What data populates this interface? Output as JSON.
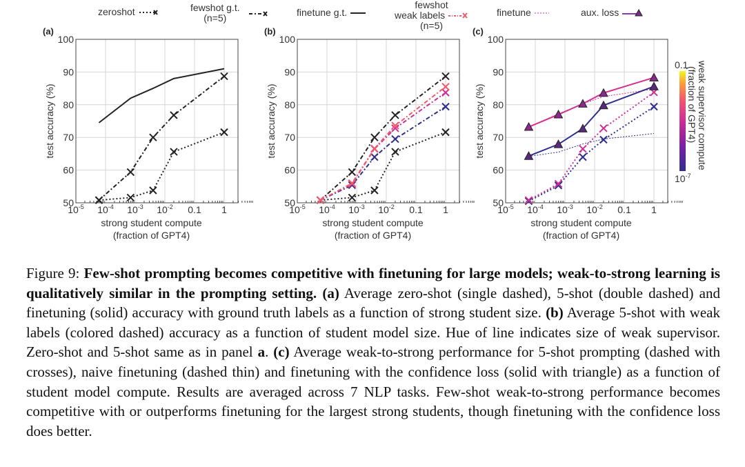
{
  "legend": {
    "zeroshot": "zeroshot",
    "fewshot_gt": [
      "fewshot g.t.",
      "(n=5)"
    ],
    "finetune_gt": "finetune g.t.",
    "fewshot_weak": [
      "fewshot",
      "weak labels",
      "(n=5)"
    ],
    "finetune": "finetune",
    "aux_loss": "aux. loss"
  },
  "colors": {
    "ground_truth": "#222222",
    "weak_large": "#f25a6a",
    "weak_medium": "#cc2f98",
    "weak_small": "#2e2f8c",
    "colorbar_top": "#f0f921",
    "colorbar_bottom": "#2e2f8c"
  },
  "colorbar": {
    "label": [
      "weak supervisor compute",
      "(fraction of GPT4)"
    ],
    "top_label": "0.1",
    "bottom_label": "10",
    "bottom_sup": "-7",
    "colormap": "plasma"
  },
  "chart_data": [
    {
      "panel": "(a)",
      "type": "line",
      "xlabel": [
        "strong student compute",
        "(fraction of GPT4)"
      ],
      "ylabel": "test accuracy (%)",
      "xscale": "log",
      "xlim": [
        1e-05,
        3
      ],
      "ylim": [
        50,
        100
      ],
      "grid": true,
      "xticks": [
        {
          "value": 1e-05,
          "label": "10",
          "sup": "-5"
        },
        {
          "value": 0.0001,
          "label": "10",
          "sup": "-4"
        },
        {
          "value": 0.001,
          "label": "10",
          "sup": "-3"
        },
        {
          "value": 0.01,
          "label": "10",
          "sup": "-2"
        },
        {
          "value": 0.1,
          "label": "0.1"
        },
        {
          "value": 1,
          "label": "1"
        }
      ],
      "yticks": [
        50,
        60,
        70,
        80,
        90,
        100
      ],
      "x": [
        6e-05,
        0.0007,
        0.004,
        0.02,
        1
      ],
      "series": [
        {
          "name": "finetune g.t.",
          "style": "solid",
          "color": "#222222",
          "marker": "none",
          "values": [
            74.5,
            82,
            85,
            88,
            91
          ]
        },
        {
          "name": "fewshot g.t. (n=5)",
          "style": "dashdot",
          "color": "#222222",
          "marker": "x",
          "values": [
            50.8,
            59.4,
            70,
            76.8,
            88.7
          ]
        },
        {
          "name": "zeroshot",
          "style": "dotted",
          "color": "#222222",
          "marker": "x",
          "values": [
            50.8,
            51.6,
            53.8,
            65.6,
            71.6
          ]
        }
      ]
    },
    {
      "panel": "(b)",
      "type": "line",
      "xlabel": [
        "strong student compute",
        "(fraction of GPT4)"
      ],
      "ylabel": "test accuracy (%)",
      "xscale": "log",
      "xlim": [
        1e-05,
        3
      ],
      "ylim": [
        50,
        100
      ],
      "grid": true,
      "xticks": [
        {
          "value": 1e-05,
          "label": "10",
          "sup": "-5"
        },
        {
          "value": 0.0001,
          "label": "10",
          "sup": "-4"
        },
        {
          "value": 0.001,
          "label": "10",
          "sup": "-3"
        },
        {
          "value": 0.01,
          "label": "10",
          "sup": "-2"
        },
        {
          "value": 0.1,
          "label": "0.1"
        },
        {
          "value": 1,
          "label": "1"
        }
      ],
      "yticks": [
        50,
        60,
        70,
        80,
        90,
        100
      ],
      "x": [
        6e-05,
        0.0007,
        0.004,
        0.02,
        1
      ],
      "series": [
        {
          "name": "fewshot g.t. (n=5)",
          "style": "dashdot",
          "color": "#222222",
          "marker": "x",
          "values": [
            50.8,
            59.4,
            70,
            76.8,
            88.7
          ]
        },
        {
          "name": "zeroshot",
          "style": "dotted",
          "color": "#222222",
          "marker": "x",
          "values": [
            50.8,
            51.6,
            53.8,
            65.6,
            71.6
          ]
        },
        {
          "name": "fewshot weak labels (n=5)",
          "style": "dashdot",
          "color": "#2e2f8c",
          "marker": "x",
          "values": [
            50.8,
            55.4,
            64,
            69.5,
            79.4
          ]
        },
        {
          "name": "fewshot weak labels (n=5)",
          "style": "dashdot",
          "color": "#cc2f98",
          "marker": "x",
          "values": [
            50.8,
            55.8,
            66.5,
            72.8,
            83.7
          ]
        },
        {
          "name": "fewshot weak labels (n=5)",
          "style": "dashdot",
          "color": "#f25a6a",
          "marker": "x",
          "values": [
            50.8,
            56,
            66.6,
            73.6,
            85.5
          ]
        }
      ]
    },
    {
      "panel": "(c)",
      "type": "line",
      "xlabel": [
        "strong student compute",
        "(fraction of GPT4)"
      ],
      "ylabel": "test accuracy (%)",
      "xscale": "log",
      "xlim": [
        1e-05,
        3
      ],
      "ylim": [
        50,
        100
      ],
      "grid": true,
      "xticks": [
        {
          "value": 1e-05,
          "label": "10",
          "sup": "-5"
        },
        {
          "value": 0.0001,
          "label": "10",
          "sup": "-4"
        },
        {
          "value": 0.001,
          "label": "10",
          "sup": "-3"
        },
        {
          "value": 0.01,
          "label": "10",
          "sup": "-2"
        },
        {
          "value": 0.1,
          "label": "0.1"
        },
        {
          "value": 1,
          "label": "1"
        }
      ],
      "yticks": [
        50,
        60,
        70,
        80,
        90,
        100
      ],
      "x": [
        6e-05,
        0.0006,
        0.004,
        0.02,
        1
      ],
      "series": [
        {
          "name": "finetune",
          "style": "thin",
          "color": "#2e2f8c",
          "marker": "none",
          "values": [
            64.2,
            65.5,
            68,
            69.5,
            71.2
          ]
        },
        {
          "name": "finetune",
          "style": "thin",
          "color": "#cc2f98",
          "marker": "none",
          "values": [
            73.2,
            77.2,
            80.3,
            82.5,
            84.8
          ]
        },
        {
          "name": "fewshot weak labels (n=5)",
          "style": "dotted",
          "color": "#2e2f8c",
          "marker": "x",
          "values": [
            50.5,
            55.3,
            64,
            69.3,
            79.4
          ]
        },
        {
          "name": "fewshot weak labels (n=5)",
          "style": "dotted",
          "color": "#cc2f98",
          "marker": "x",
          "values": [
            50.8,
            55.8,
            66.5,
            72.8,
            83.8
          ]
        },
        {
          "name": "aux. loss",
          "style": "solid",
          "color": "#2e2f8c",
          "marker": "triangle",
          "values": [
            64.3,
            67.9,
            72.7,
            79.8,
            85.6
          ]
        },
        {
          "name": "aux. loss",
          "style": "solid",
          "color": "#d6308f",
          "marker": "triangle",
          "values": [
            73.2,
            77,
            80.3,
            83.6,
            88.3
          ]
        }
      ]
    }
  ],
  "caption": [
    {
      "text": "Figure 9: ",
      "bold": false
    },
    {
      "text": "Few-shot prompting becomes competitive with finetuning for large models; weak-to-strong learning is qualitatively similar in the prompting setting.",
      "bold": true
    },
    {
      "text": " ",
      "bold": false
    },
    {
      "text": "(a)",
      "bold": true
    },
    {
      "text": " Average zero-shot (single dashed), 5-shot (double dashed) and finetuning (solid) accuracy with ground truth labels as a function of strong student size. ",
      "bold": false
    },
    {
      "text": "(b)",
      "bold": true
    },
    {
      "text": " Average 5-shot with weak labels (colored dashed) accuracy as a function of student model size. Hue of line indicates size of weak supervisor. Zero-shot and 5-shot same as in panel ",
      "bold": false
    },
    {
      "text": "a",
      "bold": true
    },
    {
      "text": ". ",
      "bold": false
    },
    {
      "text": "(c)",
      "bold": true
    },
    {
      "text": " Average weak-to-strong performance for 5-shot prompting (dashed with crosses), naive finetuning (dashed thin) and finetuning with the confidence loss (solid with triangle) as a function of student model compute. Results are averaged across 7 NLP tasks. Few-shot weak-to-strong performance becomes competitive with or outperforms finetuning for the largest strong students, though finetuning with the confidence loss does better.",
      "bold": false
    }
  ]
}
